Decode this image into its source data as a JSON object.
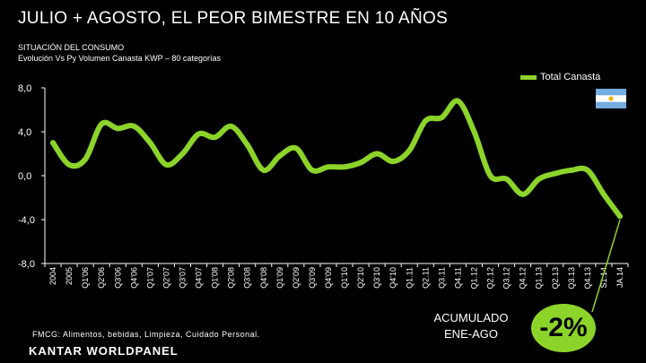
{
  "header": {
    "title": "JULIO + AGOSTO, EL PEOR BIMESTRE EN 10 AÑOS",
    "subtitle1": "SITUACIÓN DEL CONSUMO",
    "subtitle2": "Evolución Vs Py Volumen Canasta KWP – 80 categorías"
  },
  "footer": {
    "note": "FMCG: Alimentos, bebidas, Limpieza, Cuidado Personal.",
    "accum_line1": "ACUMULADO",
    "accum_line2": "ENE-AGO",
    "accum_value": "-2%",
    "brand": "KANTAR WORLDPANEL"
  },
  "colors": {
    "line": "#8cd42a",
    "badge": "#8cd42a",
    "background": "#000000",
    "text": "#ffffff"
  },
  "icons": {
    "flag": "argentina-flag-icon"
  },
  "chart_data": {
    "type": "line",
    "categories": [
      "2004",
      "2005",
      "Q1'06",
      "Q2'06",
      "Q3'06",
      "Q4'06",
      "Q1'07",
      "Q2'07",
      "Q3'07",
      "Q4'07",
      "Q1'08",
      "Q2'08",
      "Q3'08",
      "Q4'08",
      "Q1'09",
      "Q2'09",
      "Q3'09",
      "Q4'09",
      "Q1'10",
      "Q2'10",
      "Q3'10",
      "Q4'10",
      "Q1.11",
      "Q2.11",
      "Q3.11",
      "Q4.11",
      "Q1.12",
      "Q2.12",
      "Q3.12",
      "Q4.12",
      "Q1.13",
      "Q2.13",
      "Q3.13",
      "Q4.13",
      "S1.14",
      "JA.14"
    ],
    "series": [
      {
        "name": "Total Canasta",
        "values": [
          3.0,
          1.0,
          1.5,
          4.7,
          4.3,
          4.5,
          3.0,
          1.0,
          2.0,
          3.8,
          3.5,
          4.5,
          2.8,
          0.5,
          1.8,
          2.5,
          0.5,
          0.8,
          0.8,
          1.2,
          2.0,
          1.3,
          2.3,
          5.0,
          5.3,
          6.8,
          4.0,
          0.0,
          -0.3,
          -1.7,
          -0.3,
          0.2,
          0.5,
          0.5,
          -1.7,
          -3.7
        ]
      }
    ],
    "yticks": [
      "8,0",
      "4,0",
      "0,0",
      "-4,0",
      "-8,0"
    ],
    "ytick_values": [
      8,
      4,
      0,
      -4,
      -8
    ],
    "ylim": [
      -8,
      8
    ],
    "legend": "top-right",
    "grid": false
  }
}
